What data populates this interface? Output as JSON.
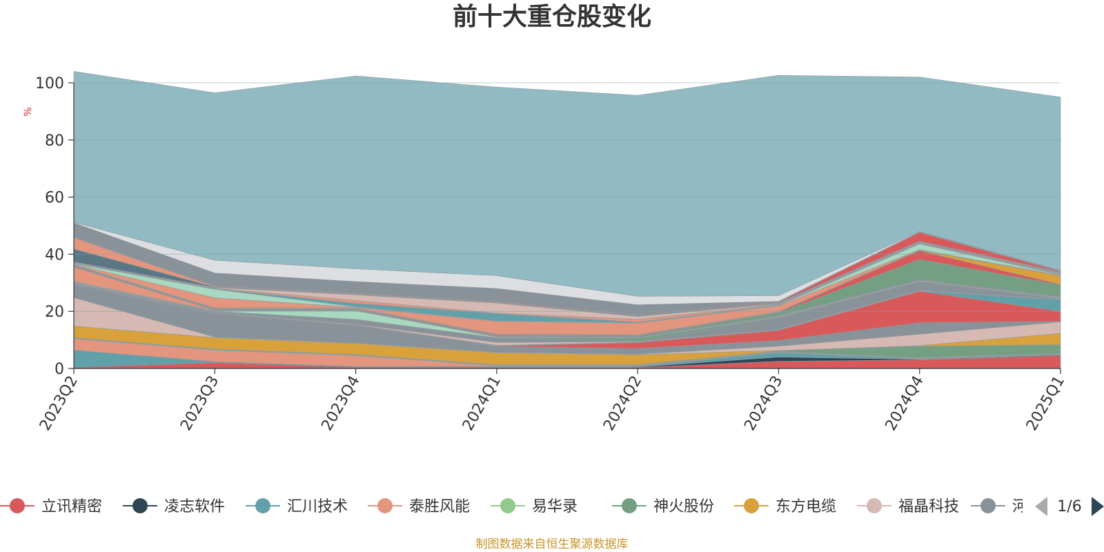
{
  "colors": {
    "background_series": "#91bac2",
    "axis": "#333333",
    "grid": "#7fa3aa",
    "source_text": "#c8962d",
    "unit_text": "#e02020"
  },
  "legend": {
    "page_indicator": "1/6",
    "prev_icon": "triangle-left-icon",
    "next_icon": "triangle-right-icon"
  },
  "source_note": "制图数据来自恒生聚源数据库",
  "chart_data": {
    "type": "area",
    "stacked": true,
    "title": "前十大重仓股变化",
    "ylabel": "%",
    "xlabel": "",
    "ylim": [
      0,
      100
    ],
    "yticks": [
      0,
      20,
      40,
      60,
      80,
      100
    ],
    "grid": true,
    "legend_position": "bottom",
    "categories": [
      "2023Q2",
      "2023Q3",
      "2023Q4",
      "2024Q1",
      "2024Q2",
      "2024Q3",
      "2024Q4",
      "2025Q1"
    ],
    "series": [
      {
        "name": "立讯精密",
        "color": "#d9595b",
        "values": [
          0.2,
          2.0,
          0.3,
          0.3,
          0.3,
          2.5,
          3.0,
          4.5
        ],
        "legend_visible": true
      },
      {
        "name": "凌志软件",
        "color": "#2f4554",
        "values": [
          0.2,
          0.2,
          0.2,
          0.2,
          0.2,
          1.5,
          0.2,
          0.2
        ],
        "legend_visible": true
      },
      {
        "name": "汇川技术",
        "color": "#61a0a8",
        "values": [
          6.0,
          0.2,
          0.2,
          0.2,
          0.2,
          1.5,
          0.2,
          0.2
        ],
        "legend_visible": true
      },
      {
        "name": "泰胜风能",
        "color": "#e3957e",
        "values": [
          4.0,
          4.0,
          3.8,
          0.2,
          0.2,
          0.2,
          0.2,
          0.2
        ],
        "legend_visible": true
      },
      {
        "name": "易华录",
        "color": "#91ca8c",
        "values": [
          0.2,
          0.2,
          0.2,
          0.2,
          0.2,
          0.2,
          0.2,
          0.2
        ],
        "legend_visible": true
      },
      {
        "name": "神火股份",
        "color": "#749f83",
        "values": [
          0.2,
          0.2,
          0.2,
          0.2,
          0.2,
          0.2,
          4.0,
          3.0
        ],
        "legend_visible": true
      },
      {
        "name": "东方电缆",
        "color": "#d9a13b",
        "values": [
          4.0,
          4.0,
          3.8,
          4.2,
          3.5,
          0.2,
          0.2,
          4.0
        ],
        "legend_visible": true
      },
      {
        "name": "福晶科技",
        "color": "#d5b9b2",
        "values": [
          10.0,
          0.2,
          0.2,
          0.2,
          0.2,
          1.5,
          4.0,
          4.0
        ],
        "legend_visible": true
      },
      {
        "name": "河钢资源",
        "color": "#8a9299",
        "values": [
          4.5,
          8.0,
          6.0,
          2.0,
          2.0,
          2.0,
          4.0,
          0.2
        ],
        "legend_visible": true
      },
      {
        "name": "",
        "color": "#d9595b",
        "values": [
          0.2,
          0.2,
          0.2,
          0.2,
          2.0,
          3.5,
          11.0,
          3.5
        ],
        "legend_visible": false
      },
      {
        "name": "",
        "color": "#61a0a8",
        "values": [
          0.2,
          0.2,
          0.2,
          0.2,
          0.2,
          0.2,
          0.2,
          4.0
        ],
        "legend_visible": false
      },
      {
        "name": "",
        "color": "#d5b9b2",
        "values": [
          0.2,
          0.2,
          0.2,
          1.0,
          0.2,
          0.2,
          0.2,
          0.2
        ],
        "legend_visible": false
      },
      {
        "name": "",
        "color": "#8a9299",
        "values": [
          0.2,
          0.2,
          1.5,
          1.5,
          0.2,
          4.0,
          3.0,
          0.2
        ],
        "legend_visible": false
      },
      {
        "name": "",
        "color": "#749f83",
        "values": [
          0.2,
          0.2,
          0.2,
          0.2,
          1.0,
          0.2,
          0.2,
          0.2
        ],
        "legend_visible": false
      },
      {
        "name": "",
        "color": "#a8d8c0",
        "values": [
          0.2,
          0.2,
          3.0,
          0.2,
          0.2,
          0.2,
          0.2,
          0.2
        ],
        "legend_visible": false
      },
      {
        "name": "",
        "color": "#e3957e",
        "values": [
          5.0,
          0.2,
          0.2,
          0.2,
          0.2,
          0.2,
          0.2,
          0.2
        ],
        "legend_visible": false
      },
      {
        "name": "",
        "color": "#5b7785",
        "values": [
          0.2,
          0.2,
          0.2,
          0.2,
          0.2,
          0.2,
          0.2,
          0.2
        ],
        "legend_visible": false
      },
      {
        "name": "",
        "color": "#749f83",
        "values": [
          0.2,
          0.2,
          0.2,
          0.2,
          0.2,
          1.0,
          7.0,
          4.0
        ],
        "legend_visible": false
      },
      {
        "name": "",
        "color": "#d9595b",
        "values": [
          0.2,
          0.2,
          0.2,
          0.2,
          0.2,
          0.2,
          3.0,
          0.2
        ],
        "legend_visible": false
      },
      {
        "name": "",
        "color": "#d9a13b",
        "values": [
          0.2,
          0.2,
          0.2,
          0.2,
          0.2,
          0.2,
          0.2,
          3.0
        ],
        "legend_visible": false
      },
      {
        "name": "",
        "color": "#e3957e",
        "values": [
          0.2,
          3.5,
          0.2,
          4.5,
          4.0,
          2.0,
          0.2,
          0.2
        ],
        "legend_visible": false
      },
      {
        "name": "",
        "color": "#a8d8c0",
        "values": [
          0.2,
          3.0,
          0.2,
          0.2,
          0.2,
          0.2,
          2.0,
          0.2
        ],
        "legend_visible": false
      },
      {
        "name": "",
        "color": "#61a0a8",
        "values": [
          0.2,
          0.2,
          1.2,
          2.5,
          0.2,
          0.2,
          0.2,
          0.2
        ],
        "legend_visible": false
      },
      {
        "name": "",
        "color": "#e3957e",
        "values": [
          0.2,
          0.2,
          1.0,
          0.2,
          1.0,
          0.2,
          0.2,
          0.2
        ],
        "legend_visible": false
      },
      {
        "name": "",
        "color": "#d5b9b2",
        "values": [
          0.2,
          0.2,
          2.0,
          3.5,
          1.0,
          0.2,
          0.2,
          0.2
        ],
        "legend_visible": false
      },
      {
        "name": "",
        "color": "#5b7785",
        "values": [
          4.5,
          0.2,
          0.2,
          0.2,
          0.2,
          0.2,
          0.2,
          0.2
        ],
        "legend_visible": false
      },
      {
        "name": "",
        "color": "#e3957e",
        "values": [
          4.0,
          0.2,
          0.2,
          0.2,
          0.2,
          0.2,
          0.2,
          0.2
        ],
        "legend_visible": false
      },
      {
        "name": "",
        "color": "#d9595b",
        "values": [
          0.2,
          0.2,
          0.2,
          0.2,
          0.2,
          0.2,
          3.0,
          0.2
        ],
        "legend_visible": false
      },
      {
        "name": "",
        "color": "#8a9299",
        "values": [
          5.0,
          4.5,
          4.0,
          4.5,
          3.5,
          0.2,
          0.2,
          0.2
        ],
        "legend_visible": false
      },
      {
        "name": "",
        "color": "#dcdee2",
        "values": [
          0.2,
          4.5,
          4.5,
          4.5,
          3.0,
          2.0,
          0.2,
          0.2
        ],
        "legend_visible": false
      },
      {
        "name": "",
        "color": "#91bac2",
        "values": [
          52.8,
          58.6,
          67.5,
          66.0,
          70.3,
          77.1,
          54.0,
          60.6
        ],
        "legend_visible": false
      }
    ]
  }
}
